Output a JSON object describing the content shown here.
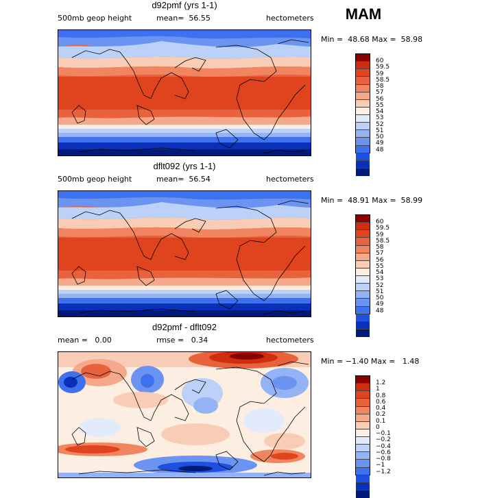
{
  "season": "MAM",
  "colors": {
    "full_scale": [
      "#001a7a",
      "#0a2fb8",
      "#1f4fe0",
      "#3f70ee",
      "#6a93f2",
      "#93b3f5",
      "#bcd1f8",
      "#e2ebfb",
      "#fdeee2",
      "#f9cdb5",
      "#f6a98a",
      "#f08560",
      "#e8623d",
      "#e0441f",
      "#cf2d10",
      "#8a0000"
    ],
    "diff_scale": [
      "#001a7a",
      "#0a2fb8",
      "#1f4fe0",
      "#3f70ee",
      "#6a93f2",
      "#93b3f5",
      "#bcd1f8",
      "#e2ebfb",
      "#fdeee2",
      "#f9cdb5",
      "#f6a98a",
      "#f08560",
      "#e8623d",
      "#e0441f",
      "#cf2d10",
      "#8a0000"
    ]
  },
  "panels": [
    {
      "title": "d92pmf (yrs 1-1)",
      "left_label": "500mb geop height",
      "center_label": "mean=  56.55",
      "right_label": "hectometers",
      "stats": "Min =  48.68 Max =  58.98",
      "colorbar_labels": [
        "60",
        "59.5",
        "59",
        "58.5",
        "58",
        "57",
        "56",
        "55",
        "54",
        "53",
        "52",
        "51",
        "50",
        "49",
        "48"
      ]
    },
    {
      "title": "dflt092 (yrs 1-1)",
      "left_label": "500mb geop height",
      "center_label": "mean=  56.54",
      "right_label": "hectometers",
      "stats": "Min =  48.91 Max =  58.99",
      "colorbar_labels": [
        "60",
        "59.5",
        "59",
        "58.5",
        "58",
        "57",
        "56",
        "55",
        "54",
        "53",
        "52",
        "51",
        "50",
        "49",
        "48"
      ]
    },
    {
      "title": "d92pmf - dflt092",
      "left_label": "mean =   0.00",
      "center_label": "rmse =   0.34",
      "right_label": "hectometers",
      "stats": "Min = −1.40 Max =   1.48",
      "colorbar_labels": [
        "1.2",
        "1",
        "0.8",
        "0.6",
        "0.4",
        "0.2",
        "0.1",
        "0",
        "−0.1",
        "−0.2",
        "−0.4",
        "−0.6",
        "−0.8",
        "−1",
        "−1.2"
      ]
    }
  ]
}
